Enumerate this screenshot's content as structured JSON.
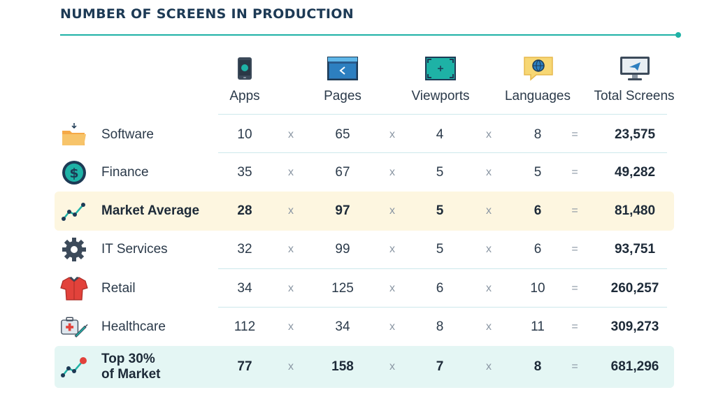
{
  "title": "NUMBER OF SCREENS IN PRODUCTION",
  "columns": {
    "apps": "Apps",
    "pages": "Pages",
    "viewports": "Viewports",
    "languages": "Languages",
    "total": "Total Screens"
  },
  "operators": {
    "times": "x",
    "equals": "="
  },
  "rows": [
    {
      "label": "Software",
      "apps": "10",
      "pages": "65",
      "viewports": "4",
      "languages": "8",
      "total": "23,575"
    },
    {
      "label": "Finance",
      "apps": "35",
      "pages": "67",
      "viewports": "5",
      "languages": "5",
      "total": "49,282"
    },
    {
      "label": "Market Average",
      "apps": "28",
      "pages": "97",
      "viewports": "5",
      "languages": "6",
      "total": "81,480"
    },
    {
      "label": "IT Services",
      "apps": "32",
      "pages": "99",
      "viewports": "5",
      "languages": "6",
      "total": "93,751"
    },
    {
      "label": "Retail",
      "apps": "34",
      "pages": "125",
      "viewports": "6",
      "languages": "10",
      "total": "260,257"
    },
    {
      "label": "Healthcare",
      "apps": "112",
      "pages": "34",
      "viewports": "8",
      "languages": "11",
      "total": "309,273"
    },
    {
      "label_line1": "Top 30%",
      "label_line2": "of Market",
      "apps": "77",
      "pages": "158",
      "viewports": "7",
      "languages": "8",
      "total": "681,296"
    }
  ],
  "icons": {
    "apps": "phone-icon",
    "pages": "browser-page-icon",
    "viewports": "viewport-icon",
    "languages": "speech-bubble-globe-icon",
    "total": "monitor-icon",
    "software": "folder-icon",
    "finance": "dollar-coin-icon",
    "market_average": "trend-line-icon",
    "it_services": "gear-icon",
    "retail": "shirt-icon",
    "healthcare": "medical-kit-icon",
    "top30": "trend-up-icon"
  },
  "colors": {
    "heading": "#1d3a55",
    "accent_teal": "#1eb2a6",
    "highlight_yellow": "#fdf6e0",
    "highlight_teal": "#e4f6f4"
  }
}
